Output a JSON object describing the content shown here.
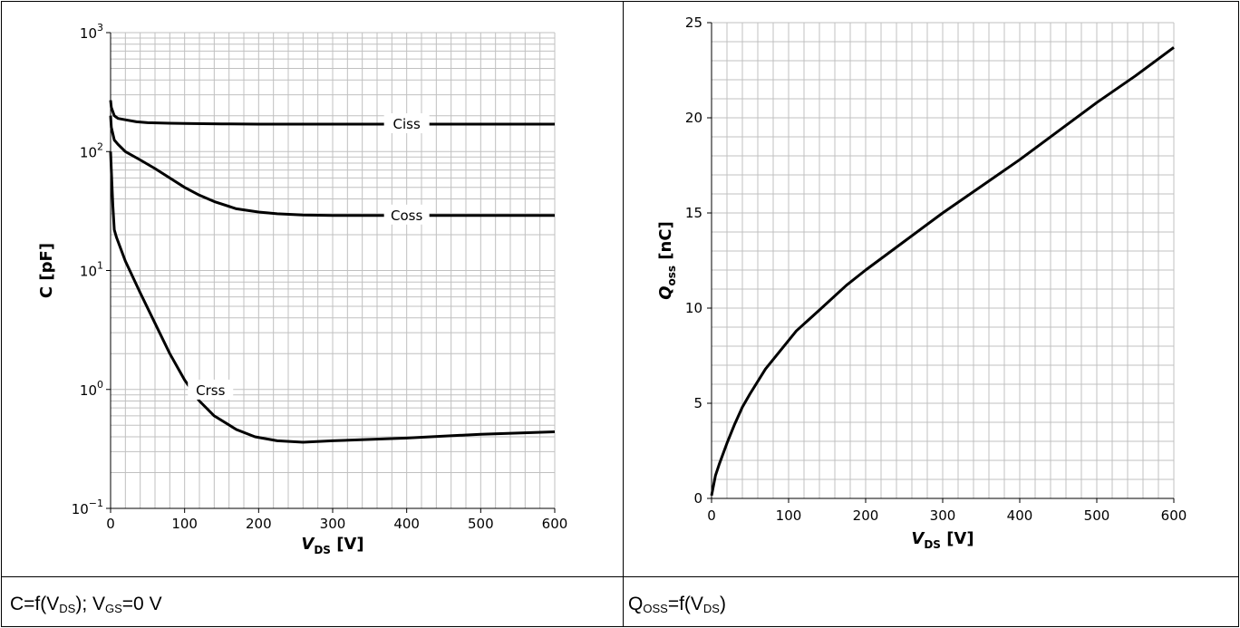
{
  "captions": {
    "left": {
      "c": "C=f(V",
      "ds1": "DS",
      "mid": "); V",
      "gs": "GS",
      "end": "=0 V"
    },
    "right": {
      "q": "Q",
      "oss": "OSS",
      "mid": "=f(V",
      "ds": "DS",
      "end": ")"
    }
  },
  "chart_data": [
    {
      "type": "line",
      "scale": {
        "y": "log"
      },
      "xlabel_main": "V",
      "xlabel_sub": "DS",
      "xlabel_unit": " [V]",
      "ylabel": "C [pF]",
      "xlim": [
        0,
        600
      ],
      "ylim": [
        0.1,
        1000
      ],
      "xticks": [
        0,
        100,
        200,
        300,
        400,
        500,
        600
      ],
      "yticks": [
        {
          "base": "10",
          "exp": "−1"
        },
        {
          "base": "10",
          "exp": "0"
        },
        {
          "base": "10",
          "exp": "1"
        },
        {
          "base": "10",
          "exp": "2"
        },
        {
          "base": "10",
          "exp": "3"
        }
      ],
      "grid": true,
      "series": [
        {
          "name": "Ciss",
          "label_at": [
            400,
            170
          ],
          "x": [
            0,
            1,
            5,
            10,
            20,
            35,
            50,
            80,
            100,
            150,
            200,
            250,
            300,
            350,
            400,
            450,
            500,
            550,
            600
          ],
          "y": [
            270,
            235,
            200,
            190,
            185,
            178,
            175,
            173,
            172,
            171,
            170,
            170,
            170,
            170,
            170,
            170,
            170,
            170,
            170
          ]
        },
        {
          "name": "Coss",
          "label_at": [
            400,
            29
          ],
          "x": [
            0,
            1,
            5,
            10,
            20,
            40,
            60,
            80,
            100,
            120,
            140,
            170,
            200,
            225,
            260,
            300,
            400,
            500,
            600
          ],
          "y": [
            200,
            160,
            125,
            115,
            100,
            85,
            72,
            60,
            50,
            43,
            38,
            33,
            31,
            30,
            29.3,
            29,
            29,
            29,
            29
          ]
        },
        {
          "name": "Crss",
          "label_at": [
            135,
            0.98
          ],
          "x": [
            0,
            1,
            3,
            5,
            8,
            20,
            40,
            60,
            80,
            100,
            120,
            140,
            170,
            195,
            225,
            260,
            300,
            400,
            500,
            600
          ],
          "y": [
            100,
            70,
            35,
            22,
            19,
            12,
            6.5,
            3.6,
            2.0,
            1.2,
            0.8,
            0.6,
            0.46,
            0.4,
            0.37,
            0.36,
            0.37,
            0.39,
            0.42,
            0.44
          ]
        }
      ]
    },
    {
      "type": "line",
      "xlabel_main": "V",
      "xlabel_sub": "DS",
      "xlabel_unit": " [V]",
      "ylabel_main": "Q",
      "ylabel_sub": "oss",
      "ylabel_unit": " [nC]",
      "xlim": [
        0,
        600
      ],
      "ylim": [
        0,
        25
      ],
      "xticks": [
        0,
        100,
        200,
        300,
        400,
        500,
        600
      ],
      "yticks": [
        0,
        5,
        10,
        15,
        20,
        25
      ],
      "grid": true,
      "series": [
        {
          "x": [
            0,
            5,
            10,
            20,
            30,
            40,
            50,
            70,
            90,
            110,
            140,
            175,
            200,
            250,
            300,
            350,
            400,
            450,
            500,
            550,
            600
          ],
          "y": [
            0.15,
            1.2,
            1.8,
            2.9,
            3.9,
            4.8,
            5.5,
            6.8,
            7.8,
            8.8,
            9.9,
            11.2,
            12.0,
            13.5,
            15.0,
            16.4,
            17.8,
            19.3,
            20.8,
            22.2,
            23.7
          ]
        }
      ]
    }
  ]
}
